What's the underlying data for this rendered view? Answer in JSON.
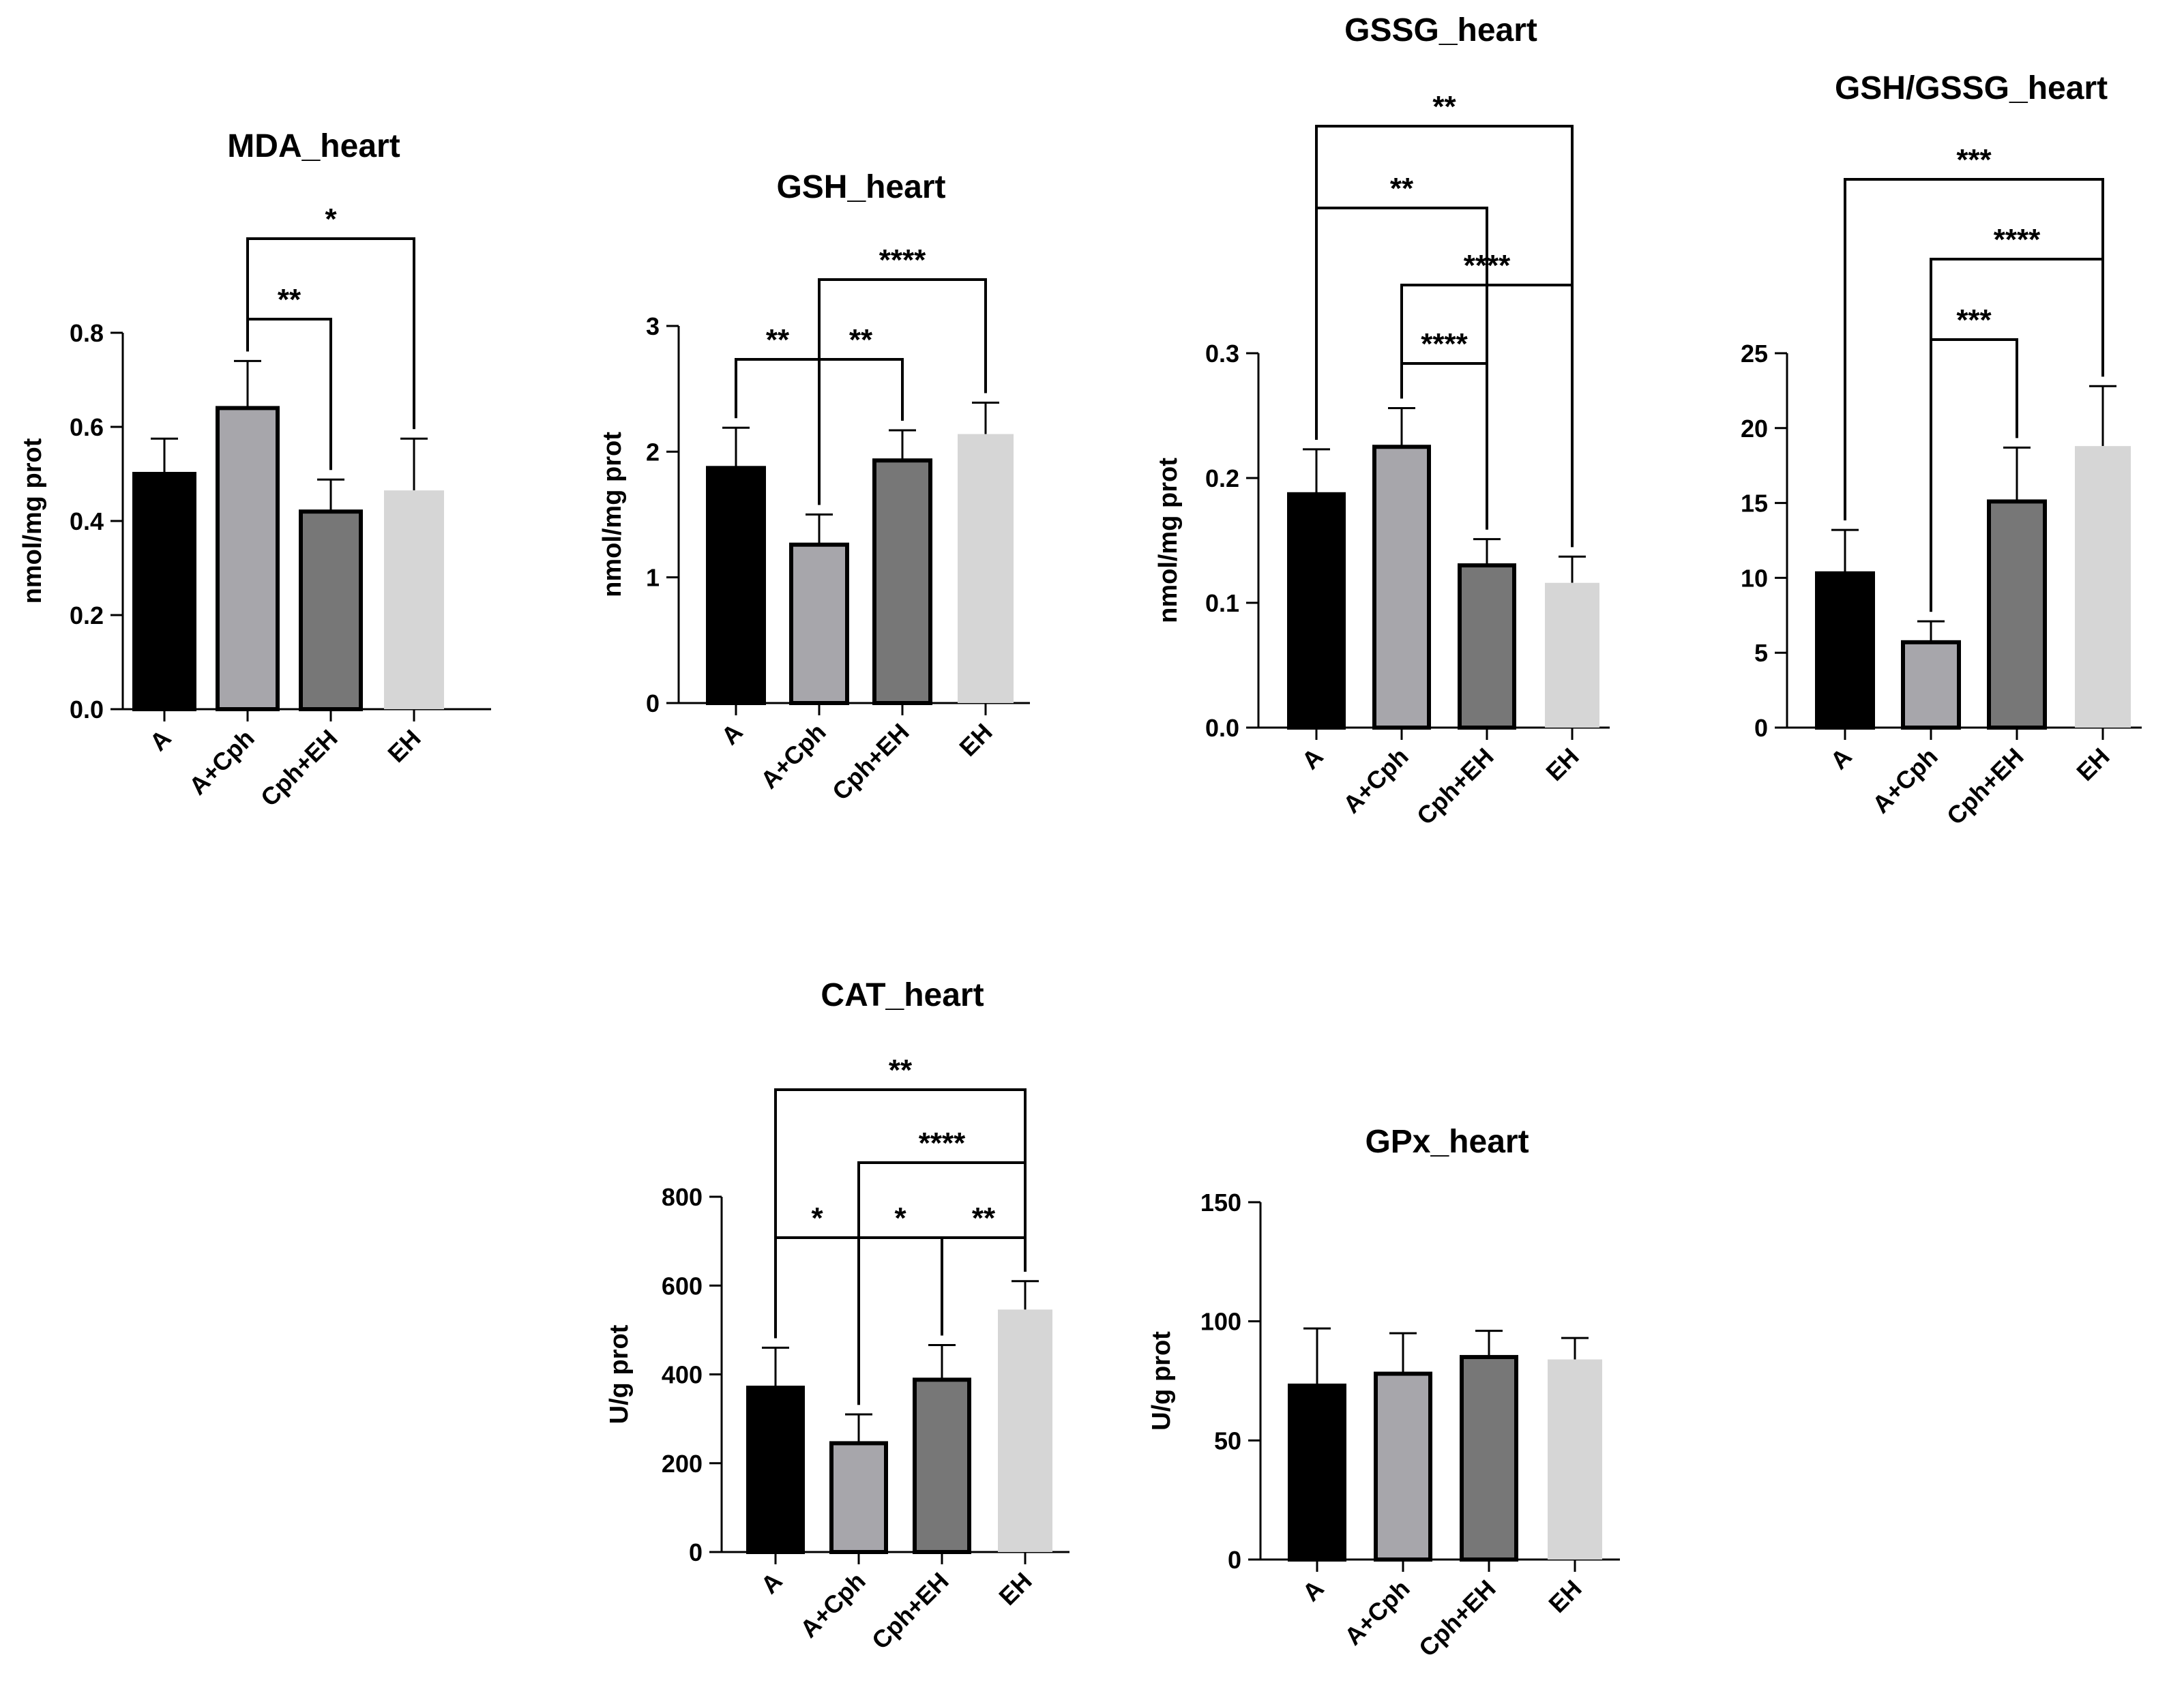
{
  "chart_data": [
    {
      "type": "bar",
      "title": "MDA_heart",
      "xlabel": "",
      "ylabel": "nmol/mg prot",
      "categories": [
        "A",
        "A+Cph",
        "Cph+EH",
        "EH"
      ],
      "values": [
        0.5,
        0.64,
        0.42,
        0.465
      ],
      "errors": [
        0.075,
        0.1,
        0.068,
        0.11
      ],
      "colors": [
        "#000000",
        "#a7a6ab",
        "#777777",
        "#d6d6d6"
      ],
      "ylim": [
        0,
        0.8
      ],
      "yticks": [
        0.0,
        0.2,
        0.4,
        0.6,
        0.8
      ],
      "ytick_labels": [
        "0.0",
        "0.2",
        "0.4",
        "0.6",
        "0.8"
      ],
      "comparisons": [
        {
          "from": 1,
          "to": 2,
          "label": "**"
        },
        {
          "from": 1,
          "to": 3,
          "label": "*"
        }
      ]
    },
    {
      "type": "bar",
      "title": "GSH_heart",
      "xlabel": "",
      "ylabel": "nmol/mg prot",
      "categories": [
        "A",
        "A+Cph",
        "Cph+EH",
        "EH"
      ],
      "values": [
        1.87,
        1.26,
        1.93,
        2.14
      ],
      "errors": [
        0.32,
        0.24,
        0.24,
        0.25
      ],
      "colors": [
        "#000000",
        "#a7a6ab",
        "#777777",
        "#d6d6d6"
      ],
      "ylim": [
        0,
        3
      ],
      "yticks": [
        0,
        1,
        2,
        3
      ],
      "ytick_labels": [
        "0",
        "1",
        "2",
        "3"
      ],
      "comparisons": [
        {
          "from": 0,
          "to": 1,
          "label": "**"
        },
        {
          "from": 1,
          "to": 2,
          "label": "**"
        },
        {
          "from": 1,
          "to": 3,
          "label": "****"
        }
      ]
    },
    {
      "type": "bar",
      "title": "GSSG_heart",
      "xlabel": "",
      "ylabel": "nmol/mg prot",
      "categories": [
        "A",
        "A+Cph",
        "Cph+EH",
        "EH"
      ],
      "values": [
        0.187,
        0.225,
        0.13,
        0.116
      ],
      "errors": [
        0.036,
        0.031,
        0.021,
        0.021
      ],
      "colors": [
        "#000000",
        "#a7a6ab",
        "#777777",
        "#d6d6d6"
      ],
      "ylim": [
        0,
        0.3
      ],
      "yticks": [
        0.0,
        0.1,
        0.2,
        0.3
      ],
      "ytick_labels": [
        "0.0",
        "0.1",
        "0.2",
        "0.3"
      ],
      "comparisons": [
        {
          "from": 1,
          "to": 2,
          "label": "****"
        },
        {
          "from": 1,
          "to": 3,
          "label": "****"
        },
        {
          "from": 0,
          "to": 2,
          "label": "**"
        },
        {
          "from": 0,
          "to": 3,
          "label": "**"
        }
      ]
    },
    {
      "type": "bar",
      "title": "GSH/GSSG_heart",
      "xlabel": "",
      "ylabel": "",
      "categories": [
        "A",
        "A+Cph",
        "Cph+EH",
        "EH"
      ],
      "values": [
        10.3,
        5.7,
        15.1,
        18.8
      ],
      "errors": [
        2.9,
        1.4,
        3.6,
        4.0
      ],
      "colors": [
        "#000000",
        "#a7a6ab",
        "#777777",
        "#d6d6d6"
      ],
      "ylim": [
        0,
        25
      ],
      "yticks": [
        0,
        5,
        10,
        15,
        20,
        25
      ],
      "ytick_labels": [
        "0",
        "5",
        "10",
        "15",
        "20",
        "25"
      ],
      "comparisons": [
        {
          "from": 1,
          "to": 2,
          "label": "***"
        },
        {
          "from": 1,
          "to": 3,
          "label": "****"
        },
        {
          "from": 0,
          "to": 3,
          "label": "***"
        }
      ]
    },
    {
      "type": "bar",
      "title": "CAT_heart",
      "xlabel": "",
      "ylabel": "U/g prot",
      "categories": [
        "A",
        "A+Cph",
        "Cph+EH",
        "EH"
      ],
      "values": [
        370,
        245,
        388,
        546
      ],
      "errors": [
        90,
        65,
        78,
        64
      ],
      "colors": [
        "#000000",
        "#a7a6ab",
        "#777777",
        "#d6d6d6"
      ],
      "ylim": [
        0,
        800
      ],
      "yticks": [
        0,
        200,
        400,
        600,
        800
      ],
      "ytick_labels": [
        "0",
        "200",
        "400",
        "600",
        "800"
      ],
      "comparisons": [
        {
          "from": 0,
          "to": 1,
          "label": "*"
        },
        {
          "from": 1,
          "to": 2,
          "label": "*"
        },
        {
          "from": 2,
          "to": 3,
          "label": "**"
        },
        {
          "from": 1,
          "to": 3,
          "label": "****"
        },
        {
          "from": 0,
          "to": 3,
          "label": "**"
        }
      ]
    },
    {
      "type": "bar",
      "title": "GPx_heart",
      "xlabel": "",
      "ylabel": "U/g prot",
      "categories": [
        "A",
        "A+Cph",
        "Cph+EH",
        "EH"
      ],
      "values": [
        73,
        78,
        85,
        84
      ],
      "errors": [
        24,
        17,
        11,
        9
      ],
      "colors": [
        "#000000",
        "#a7a6ab",
        "#777777",
        "#d6d6d6"
      ],
      "ylim": [
        0,
        150
      ],
      "yticks": [
        0,
        50,
        100,
        150
      ],
      "ytick_labels": [
        "0",
        "50",
        "100",
        "150"
      ],
      "comparisons": []
    }
  ]
}
